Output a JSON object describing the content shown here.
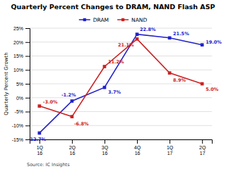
{
  "chart_data": {
    "type": "line",
    "title": "Quarterly Percent Changes to DRAM, NAND Flash ASP",
    "y_label": "Quarterly Percent Growth",
    "annotations": [
      "Source: IC Insights"
    ],
    "categories": [
      "1Q\n16",
      "2Q\n16",
      "3Q\n16",
      "4Q\n16",
      "1Q\n17",
      "2Q\n17"
    ],
    "series": [
      {
        "name": "DRAM",
        "color": "#2222cc",
        "marker": "square",
        "line_style": "solid",
        "values": [
          -12.7,
          -1.2,
          3.7,
          22.8,
          21.5,
          19.0
        ],
        "value_labels": [
          "-12.7%",
          "-1.2%",
          "3.7%",
          "22.8%",
          "21.5%",
          "19.0%"
        ]
      },
      {
        "name": "NAND",
        "color": "#cc2222",
        "marker": "square",
        "line_style": "solid",
        "values": [
          -3.0,
          -6.8,
          11.2,
          21.1,
          8.9,
          5.0
        ],
        "value_labels": [
          "-3.0%",
          "-6.8%",
          "11.2%",
          "21.1%",
          "8.9%",
          "5.0%"
        ]
      }
    ],
    "ylim": [
      -15,
      25
    ],
    "yticks": [
      {
        "value": -15,
        "label": "-15%"
      },
      {
        "value": -10,
        "label": "-10%"
      },
      {
        "value": -5,
        "label": "-5%"
      },
      {
        "value": 0,
        "label": "0%"
      },
      {
        "value": 5,
        "label": "5%"
      },
      {
        "value": 10,
        "label": "10%"
      },
      {
        "value": 15,
        "label": "15%"
      },
      {
        "value": 20,
        "label": "20%"
      },
      {
        "value": 25,
        "label": "25%"
      }
    ],
    "grid": true,
    "legend": "top",
    "data_labels": true
  }
}
